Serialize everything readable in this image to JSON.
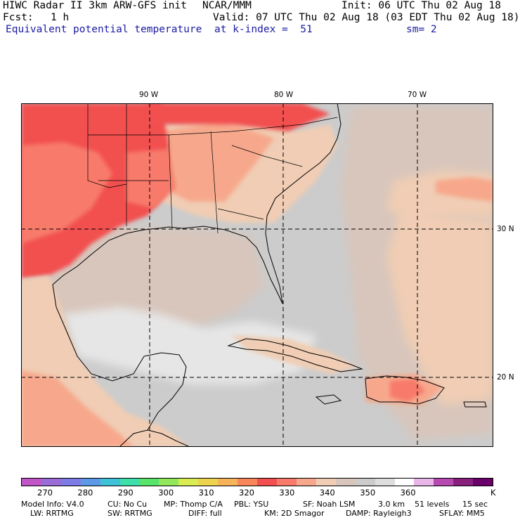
{
  "header": {
    "title": "HIWC Radar II 3km ARW-GFS init",
    "org": "NCAR/MMM",
    "init": "Init: 06 UTC Thu 02 Aug 18",
    "fcst_label": "Fcst:",
    "fcst_value": "1 h",
    "valid": "Valid: 07 UTC Thu 02 Aug 18 (03 EDT Thu 02 Aug 18)",
    "field": "Equivalent potential temperature",
    "level": "at k-index =  51",
    "smooth": "sm= 2"
  },
  "map": {
    "lon_labels": [
      "90 W",
      "80 W",
      "70 W"
    ],
    "lat_labels": [
      "30 N",
      "20 N"
    ]
  },
  "colorbar": {
    "unit": "K",
    "tick_labels": [
      "270",
      "280",
      "290",
      "300",
      "310",
      "320",
      "330",
      "340",
      "350",
      "360"
    ],
    "colors": [
      "#c055c8",
      "#9a6cd6",
      "#7d7be6",
      "#5c9ae8",
      "#3fc2d8",
      "#3edfa8",
      "#58e46a",
      "#92e85a",
      "#d9ec52",
      "#ecd44e",
      "#f7b35a",
      "#f7865a",
      "#f25050",
      "#f77a6a",
      "#f7a88c",
      "#f0cdb4",
      "#d8c6bc",
      "#cccccc",
      "#dedede",
      "#ffffff",
      "#e8b6e8",
      "#b64ab0",
      "#8a207e",
      "#6a006a"
    ]
  },
  "footer": {
    "line1": [
      "Model Info: V4.0",
      "CU: No Cu",
      "MP: Thomp C/A",
      "PBL: YSU",
      "SF: Noah LSM",
      "3.0 km",
      "51 levels",
      "15 sec"
    ],
    "line2": [
      "LW: RRTMG",
      "SW: RRTMG",
      "DIFF: full",
      "KM: 2D Smagor",
      "DAMP: Rayleigh3",
      "SFLAY: MM5"
    ]
  }
}
